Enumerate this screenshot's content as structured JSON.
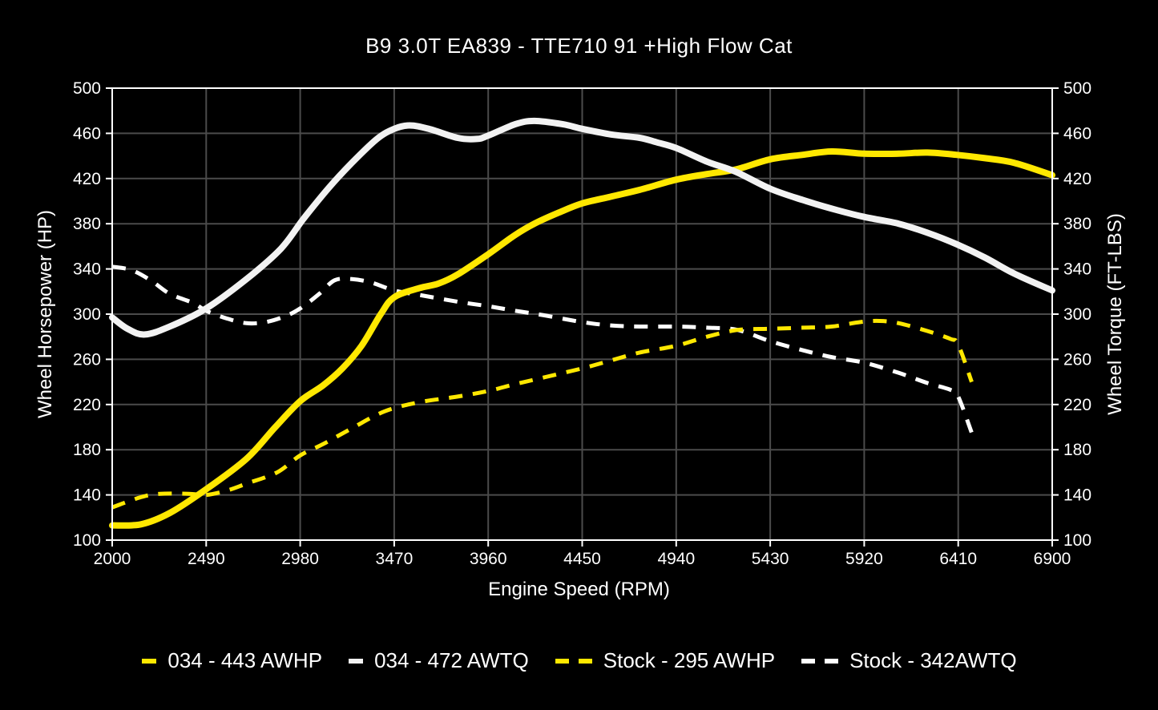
{
  "title": "B9 3.0T EA839 - TTE710 91 +High Flow Cat",
  "axes": {
    "x_label": "Engine Speed (RPM)",
    "y_left_label": "Wheel Horsepower (HP)",
    "y_right_label": "Wheel Torque (FT-LBS)"
  },
  "colors": {
    "background": "#000000",
    "grid": "#4b4b4b",
    "axis": "#ffffff",
    "yellow": "#ffe800",
    "white_solid": "#f2f2f2",
    "white_dashed": "#ffffff"
  },
  "legend": [
    {
      "label": "034 - 443 AWHP",
      "color": "#ffe800",
      "dashed": false
    },
    {
      "label": "034 - 472 AWTQ",
      "color": "#f2f2f2",
      "dashed": false
    },
    {
      "label": "Stock - 295 AWHP",
      "color": "#ffe800",
      "dashed": true
    },
    {
      "label": "Stock - 342AWTQ",
      "color": "#ffffff",
      "dashed": true
    }
  ],
  "chart_data": {
    "type": "line",
    "title": "B9 3.0T EA839 - TTE710 91 +High Flow Cat",
    "xlabel": "Engine Speed (RPM)",
    "ylabel_left": "Wheel Horsepower (HP)",
    "ylabel_right": "Wheel Torque (FT-LBS)",
    "xlim": [
      2000,
      6900
    ],
    "ylim": [
      100,
      500
    ],
    "x_ticks": [
      2000,
      2490,
      2980,
      3470,
      3960,
      4450,
      4940,
      5430,
      5920,
      6410,
      6900
    ],
    "y_ticks": [
      100,
      140,
      180,
      220,
      260,
      300,
      340,
      380,
      420,
      460,
      500
    ],
    "grid": true,
    "legend_position": "bottom",
    "series": [
      {
        "name": "Stock - 342AWTQ",
        "style": "dashed",
        "color": "#ffffff",
        "peak": "342 AWTQ",
        "points": [
          [
            2000,
            342
          ],
          [
            2100,
            339
          ],
          [
            2200,
            330
          ],
          [
            2300,
            318
          ],
          [
            2420,
            310
          ],
          [
            2490,
            303
          ],
          [
            2600,
            296
          ],
          [
            2700,
            292
          ],
          [
            2800,
            293
          ],
          [
            2900,
            298
          ],
          [
            2980,
            305
          ],
          [
            3080,
            318
          ],
          [
            3160,
            330
          ],
          [
            3250,
            331
          ],
          [
            3350,
            328
          ],
          [
            3470,
            321
          ],
          [
            3600,
            317
          ],
          [
            3800,
            311
          ],
          [
            3960,
            307
          ],
          [
            4100,
            303
          ],
          [
            4250,
            299
          ],
          [
            4450,
            293
          ],
          [
            4600,
            290
          ],
          [
            4750,
            289
          ],
          [
            4940,
            289
          ],
          [
            5100,
            288
          ],
          [
            5260,
            286
          ],
          [
            5430,
            276
          ],
          [
            5600,
            268
          ],
          [
            5750,
            262
          ],
          [
            5920,
            257
          ],
          [
            6100,
            248
          ],
          [
            6250,
            239
          ],
          [
            6370,
            233
          ],
          [
            6410,
            227
          ],
          [
            6480,
            195
          ]
        ]
      },
      {
        "name": "Stock - 295 AWHP",
        "style": "dashed",
        "color": "#ffe800",
        "peak": "295 AWHP",
        "points": [
          [
            2000,
            129
          ],
          [
            2150,
            138
          ],
          [
            2250,
            141
          ],
          [
            2400,
            141
          ],
          [
            2490,
            140
          ],
          [
            2600,
            144
          ],
          [
            2700,
            150
          ],
          [
            2860,
            160
          ],
          [
            2980,
            175
          ],
          [
            3100,
            185
          ],
          [
            3250,
            199
          ],
          [
            3420,
            214
          ],
          [
            3600,
            222
          ],
          [
            3800,
            227
          ],
          [
            3960,
            232
          ],
          [
            4100,
            238
          ],
          [
            4250,
            244
          ],
          [
            4450,
            252
          ],
          [
            4600,
            259
          ],
          [
            4750,
            266
          ],
          [
            4940,
            272
          ],
          [
            5100,
            280
          ],
          [
            5260,
            286
          ],
          [
            5430,
            287
          ],
          [
            5600,
            288
          ],
          [
            5750,
            289
          ],
          [
            5900,
            293
          ],
          [
            6000,
            294
          ],
          [
            6100,
            292
          ],
          [
            6250,
            285
          ],
          [
            6370,
            278
          ],
          [
            6410,
            273
          ],
          [
            6480,
            240
          ]
        ]
      },
      {
        "name": "034 - 443 AWHP",
        "style": "solid",
        "color": "#ffe800",
        "peak": "443 AWHP",
        "points": [
          [
            2000,
            113
          ],
          [
            2150,
            114
          ],
          [
            2300,
            124
          ],
          [
            2490,
            145
          ],
          [
            2700,
            172
          ],
          [
            2850,
            200
          ],
          [
            2980,
            223
          ],
          [
            3100,
            237
          ],
          [
            3200,
            252
          ],
          [
            3300,
            272
          ],
          [
            3400,
            300
          ],
          [
            3470,
            315
          ],
          [
            3600,
            323
          ],
          [
            3700,
            327
          ],
          [
            3800,
            335
          ],
          [
            3960,
            353
          ],
          [
            4100,
            370
          ],
          [
            4200,
            380
          ],
          [
            4330,
            390
          ],
          [
            4450,
            398
          ],
          [
            4600,
            404
          ],
          [
            4750,
            410
          ],
          [
            4940,
            419
          ],
          [
            5100,
            424
          ],
          [
            5250,
            428
          ],
          [
            5430,
            437
          ],
          [
            5600,
            441
          ],
          [
            5750,
            444
          ],
          [
            5920,
            442
          ],
          [
            6100,
            442
          ],
          [
            6250,
            443
          ],
          [
            6400,
            441
          ],
          [
            6550,
            438
          ],
          [
            6700,
            434
          ],
          [
            6900,
            423
          ]
        ]
      },
      {
        "name": "034 - 472 AWTQ",
        "style": "solid",
        "color": "#f2f2f2",
        "peak": "472 AWTQ",
        "points": [
          [
            2000,
            297
          ],
          [
            2080,
            287
          ],
          [
            2170,
            282
          ],
          [
            2300,
            289
          ],
          [
            2490,
            305
          ],
          [
            2700,
            331
          ],
          [
            2880,
            358
          ],
          [
            3000,
            385
          ],
          [
            3130,
            412
          ],
          [
            3250,
            434
          ],
          [
            3380,
            455
          ],
          [
            3470,
            464
          ],
          [
            3550,
            467
          ],
          [
            3650,
            464
          ],
          [
            3800,
            456
          ],
          [
            3900,
            455
          ],
          [
            3960,
            458
          ],
          [
            4100,
            468
          ],
          [
            4200,
            471
          ],
          [
            4350,
            468
          ],
          [
            4450,
            464
          ],
          [
            4600,
            459
          ],
          [
            4750,
            456
          ],
          [
            4840,
            452
          ],
          [
            4940,
            447
          ],
          [
            5100,
            435
          ],
          [
            5250,
            426
          ],
          [
            5430,
            411
          ],
          [
            5600,
            401
          ],
          [
            5780,
            392
          ],
          [
            5920,
            386
          ],
          [
            6100,
            380
          ],
          [
            6250,
            372
          ],
          [
            6400,
            362
          ],
          [
            6550,
            350
          ],
          [
            6700,
            336
          ],
          [
            6900,
            321
          ]
        ]
      }
    ]
  }
}
